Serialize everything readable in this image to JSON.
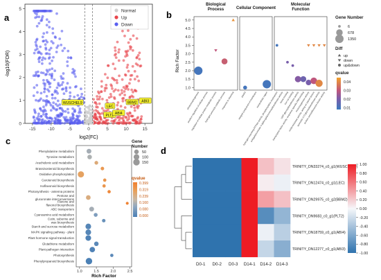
{
  "panels": {
    "a": "a",
    "b": "b",
    "c": "c",
    "d": "d"
  },
  "chart_data": [
    {
      "id": "a",
      "type": "scatter",
      "xlabel": "log2(FC)",
      "ylabel": "-log10(FDR)",
      "xlim": [
        -17,
        17
      ],
      "ylim": [
        0,
        5.2
      ],
      "xticks": [
        -15,
        -10,
        -5,
        0,
        5,
        10,
        15
      ],
      "yticks": [
        0,
        1,
        2,
        3,
        4,
        5
      ],
      "thresholds_x": [
        -1,
        1
      ],
      "legend": [
        {
          "name": "Normal",
          "color": "#d0d0d0"
        },
        {
          "name": "Up",
          "color": "#e8454b"
        },
        {
          "name": "Down",
          "color": "#5a5ff0"
        }
      ],
      "labels": [
        {
          "text": "WUSCHEL9",
          "x": -4.3,
          "y": 0.9
        },
        {
          "text": "LEC",
          "x": 5.7,
          "y": 0.75
        },
        {
          "text": "BBM2",
          "x": 11.6,
          "y": 0.92
        },
        {
          "text": "ABI3",
          "x": 15.1,
          "y": 0.98
        },
        {
          "text": "PLT2",
          "x": 5.6,
          "y": 0.36
        },
        {
          "text": "ABI4",
          "x": 8.0,
          "y": 0.45
        }
      ]
    },
    {
      "id": "b",
      "type": "scatter",
      "ylabel": "Rich Factor",
      "ylim": [
        0.85,
        5.2
      ],
      "yticks": [
        1.0,
        1.5,
        2.0,
        2.5,
        3.0,
        3.5,
        4.0,
        4.5,
        5.0
      ],
      "groups": [
        "Biological Process",
        "Cellular Component",
        "Molecular Function"
      ],
      "categories": [
        "photomorphogenesis",
        "positive regulation of cellular process",
        "regulation of cellular protein metabolic process",
        "hydrogen peroxide catabolic process",
        "response to chemical",
        "plastid",
        "integral component of membrane",
        "extracellular region",
        "hydrogen-exporting ATPase activity, phosphorylative mechanism",
        "polygalacturonate 4-alpha-galacturonosyltransferase activity",
        "heme binding",
        "iron ion binding",
        "UDP-glycosyltransferase activity",
        "transcription factor activity, sequence-specific DNA binding",
        "monooxygenase activity",
        "oxidoreductase activity, acting on paired donors",
        "quercetin 3-O-glucosyltransferase activity",
        "protein serine/threonine kinase activity"
      ],
      "points": [
        {
          "cat": 0,
          "y": 2.0,
          "size": 1350,
          "q": 0.01,
          "diff": "up&down"
        },
        {
          "cat": 2,
          "y": 3.2,
          "size": 6,
          "q": 0.03,
          "diff": "down"
        },
        {
          "cat": 3,
          "y": 2.55,
          "size": 500,
          "q": 0.032,
          "diff": "up&down"
        },
        {
          "cat": 4,
          "y": 5.0,
          "size": 6,
          "q": 0.042,
          "diff": "up"
        },
        {
          "cat": 5,
          "y": 1.0,
          "size": 100,
          "q": 0.01,
          "diff": "up&down"
        },
        {
          "cat": 7,
          "y": 1.2,
          "size": 1350,
          "q": 0.01,
          "diff": "up&down"
        },
        {
          "cat": 8,
          "y": 3.5,
          "size": 6,
          "q": 0.01,
          "diff": "up&down"
        },
        {
          "cat": 10,
          "y": 2.5,
          "size": 6,
          "q": 0.02,
          "diff": "up&down"
        },
        {
          "cat": 11,
          "y": 2.3,
          "size": 6,
          "q": 0.02,
          "diff": "up&down"
        },
        {
          "cat": 12,
          "y": 1.5,
          "size": 600,
          "q": 0.022,
          "diff": "up&down"
        },
        {
          "cat": 13,
          "y": 1.5,
          "size": 500,
          "q": 0.018,
          "diff": "up&down"
        },
        {
          "cat": 14,
          "y": 1.3,
          "size": 400,
          "q": 0.02,
          "diff": "up&down"
        },
        {
          "cat": 15,
          "y": 1.4,
          "size": 700,
          "q": 0.03,
          "diff": "up&down"
        },
        {
          "cat": 16,
          "y": 1.25,
          "size": 900,
          "q": 0.04,
          "diff": "up&down"
        },
        {
          "cat": 14,
          "y": 3.5,
          "size": 6,
          "q": 0.04,
          "diff": "down"
        },
        {
          "cat": 15,
          "y": 3.5,
          "size": 6,
          "q": 0.04,
          "diff": "down"
        },
        {
          "cat": 16,
          "y": 3.5,
          "size": 6,
          "q": 0.04,
          "diff": "down"
        },
        {
          "cat": 17,
          "y": 3.5,
          "size": 6,
          "q": 0.04,
          "diff": "down"
        }
      ],
      "legend_size_title": "Gene Number",
      "legend_sizes": [
        6,
        678,
        1350
      ],
      "legend_diff_title": "Diff",
      "legend_diff": [
        "up",
        "down",
        "up&down"
      ],
      "legend_color_title": "qvalue",
      "legend_color_ticks": [
        0.04,
        0.03,
        0.02,
        0.01
      ]
    },
    {
      "id": "c",
      "type": "scatter",
      "xlabel": "Rich Factor",
      "xlim": [
        0.9,
        2.55
      ],
      "xticks": [
        1.0,
        1.5,
        2.0,
        2.5
      ],
      "categories": [
        "Phenylalanine metabolism",
        "Tyrosine metabolism",
        "Arachidonic acid metabolism",
        "Brassinosteroid biosynthesis",
        "Oxidative phosphorylation",
        "Carotenoid biosynthesis",
        "Isoflavonoid biosynthesis",
        "Photosynthesis - antenna proteins",
        "Pentose and glucuronate interconversions",
        "Flavone and flavonol biosynthesis",
        "ABC transporters",
        "Cyanoamino acid metabolism",
        "Cutin, suberine and wax biosynthesis",
        "Starch and sucrose metabolism",
        "MAPK signaling pathway - plant",
        "Plant hormone signal transduction",
        "Glutathione metabolism",
        "Plant-pathogen interaction",
        "Photosynthesis",
        "Phenylpropanoid biosynthesis"
      ],
      "points": [
        {
          "x": 1.28,
          "size": 60,
          "q": 0.15
        },
        {
          "x": 1.3,
          "size": 50,
          "q": 0.16
        },
        {
          "x": 1.5,
          "size": 25,
          "q": 0.26
        },
        {
          "x": 1.68,
          "size": 20,
          "q": 0.32
        },
        {
          "x": 1.04,
          "size": 130,
          "q": 0.29
        },
        {
          "x": 1.75,
          "size": 15,
          "q": 0.33
        },
        {
          "x": 1.73,
          "size": 15,
          "q": 0.33
        },
        {
          "x": 1.88,
          "size": 15,
          "q": 0.37
        },
        {
          "x": 1.26,
          "size": 55,
          "q": 0.25
        },
        {
          "x": 2.42,
          "size": 8,
          "q": 0.39
        },
        {
          "x": 1.36,
          "size": 60,
          "q": 0.15
        },
        {
          "x": 1.48,
          "size": 30,
          "q": 0.09
        },
        {
          "x": 1.72,
          "size": 20,
          "q": 0.05
        },
        {
          "x": 1.26,
          "size": 100,
          "q": 0.02
        },
        {
          "x": 1.26,
          "size": 100,
          "q": 0.02
        },
        {
          "x": 1.26,
          "size": 100,
          "q": 0.01
        },
        {
          "x": 1.5,
          "size": 50,
          "q": 0.03
        },
        {
          "x": 1.38,
          "size": 90,
          "q": 0.01
        },
        {
          "x": 1.96,
          "size": 15,
          "q": 0.03
        },
        {
          "x": 1.28,
          "size": 150,
          "q": 0.002
        }
      ],
      "legend_size_title": "Gene Number",
      "legend_sizes": [
        50,
        100,
        150
      ],
      "legend_color_title": "qvalue",
      "legend_color_ticks": [
        "0.399",
        "0.319",
        "0.239",
        "0.160",
        "0.080",
        "0.000"
      ]
    },
    {
      "id": "d",
      "type": "heatmap",
      "columns": [
        "D0-1",
        "D0-2",
        "D0-3",
        "D14-1",
        "D14-2",
        "D14-3"
      ],
      "rows": [
        "TRINITY_DN33274_c0_g1(WUSCHEL9)",
        "TRINITY_DN12474_c0_g1(LEC)",
        "TRINITY_DN29975_c0_g2(BBM2)",
        "TRINITY_DN9683_c0_g1(PLT2)",
        "TRINITY_DN18759_c0_g1(ABI4)",
        "TRINITY_DN12277_c0_g1(ABI3)"
      ],
      "values": [
        [
          -1.0,
          -1.0,
          -1.0,
          1.0,
          0.25,
          0.1
        ],
        [
          -1.0,
          -1.0,
          -1.0,
          1.0,
          0.05,
          -0.05
        ],
        [
          -1.0,
          -1.0,
          -1.0,
          1.0,
          0.4,
          0.25
        ],
        [
          -1.0,
          -1.0,
          -1.0,
          1.0,
          -0.8,
          -0.5
        ],
        [
          -1.0,
          -1.0,
          -1.0,
          1.0,
          -0.05,
          -0.3
        ],
        [
          -1.0,
          -1.0,
          -1.0,
          1.0,
          -0.25,
          -0.55
        ]
      ],
      "colorbar_ticks": [
        "1.00",
        "0.80",
        "0.60",
        "0.40",
        "0.20",
        "0.00",
        "-0.20",
        "-0.40",
        "-0.60",
        "-0.80",
        "-1.00"
      ]
    }
  ]
}
